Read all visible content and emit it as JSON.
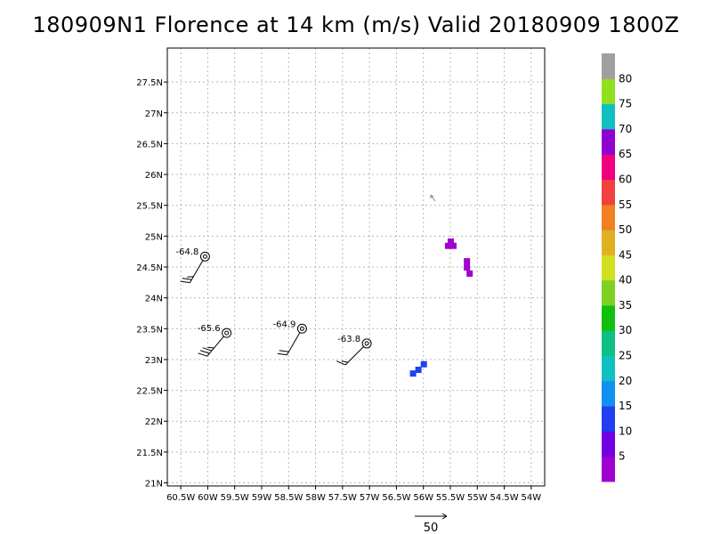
{
  "title": "180909N1 Florence at 14 km (m/s) Valid 20180909 1800Z",
  "chart_data": {
    "type": "scatter",
    "xaxis": {
      "range": [
        -60.75,
        -53.75
      ],
      "ticks": [
        -60.5,
        -60,
        -59.5,
        -59,
        -58.5,
        -58,
        -57.5,
        -57,
        -56.5,
        -56,
        -55.5,
        -55,
        -54.5,
        -54
      ],
      "tick_labels": [
        "60.5W",
        "60W",
        "59.5W",
        "59W",
        "58.5W",
        "58W",
        "57.5W",
        "57W",
        "56.5W",
        "56W",
        "55.5W",
        "55W",
        "54.5W",
        "54W"
      ]
    },
    "yaxis": {
      "range": [
        20.95,
        28.05
      ],
      "ticks": [
        21,
        21.5,
        22,
        22.5,
        23,
        23.5,
        24,
        24.5,
        25,
        25.5,
        26,
        26.5,
        27,
        27.5
      ],
      "tick_labels": [
        "21N",
        "21.5N",
        "22N",
        "22.5N",
        "23N",
        "23.5N",
        "24N",
        "24.5N",
        "25N",
        "25.5N",
        "26N",
        "26.5N",
        "27N",
        "27.5N"
      ]
    },
    "grid": true,
    "stations": [
      {
        "lon": -60.05,
        "lat": 24.67,
        "label": "-64.8",
        "speed_kt": 25,
        "from_deg": 330
      },
      {
        "lon": -59.65,
        "lat": 23.43,
        "label": "-65.6",
        "speed_kt": 35,
        "from_deg": 320
      },
      {
        "lon": -58.25,
        "lat": 23.5,
        "label": "-64.9",
        "speed_kt": 20,
        "from_deg": 330
      },
      {
        "lon": -57.05,
        "lat": 23.26,
        "label": "-63.8",
        "speed_kt": 15,
        "from_deg": 315
      }
    ],
    "obs_cells": [
      {
        "lon": -55.55,
        "lat": 24.85,
        "value": 3
      },
      {
        "lon": -55.45,
        "lat": 24.85,
        "value": 3
      },
      {
        "lon": -55.5,
        "lat": 24.92,
        "value": 3
      },
      {
        "lon": -55.2,
        "lat": 24.6,
        "value": 3
      },
      {
        "lon": -55.2,
        "lat": 24.5,
        "value": 3
      },
      {
        "lon": -55.15,
        "lat": 24.4,
        "value": 3
      },
      {
        "lon": -56.2,
        "lat": 22.78,
        "value": 12
      },
      {
        "lon": -56.1,
        "lat": 22.84,
        "value": 12
      },
      {
        "lon": -56.0,
        "lat": 22.93,
        "value": 12
      }
    ],
    "ref_vector": {
      "label": "50"
    },
    "colorbar": {
      "labels": [
        "5",
        "10",
        "15",
        "20",
        "25",
        "30",
        "35",
        "40",
        "45",
        "50",
        "55",
        "60",
        "65",
        "70",
        "75",
        "80"
      ],
      "colors": [
        "#a000d0",
        "#7000e0",
        "#2040f0",
        "#1090f0",
        "#10c0c0",
        "#10c080",
        "#10c010",
        "#80d020",
        "#d0e020",
        "#e0b020",
        "#f08020",
        "#f04040",
        "#f00080",
        "#9000d0",
        "#10c0c0",
        "#90e020",
        "#a0a0a0"
      ]
    }
  }
}
